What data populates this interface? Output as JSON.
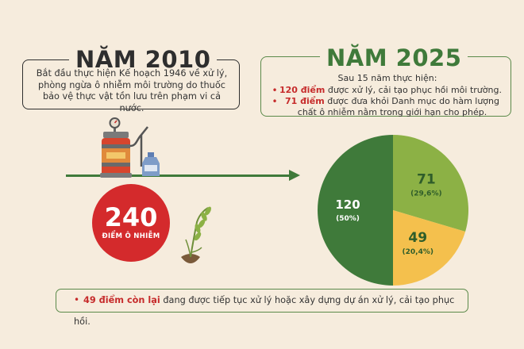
{
  "left": {
    "title": "NĂM 2010",
    "desc": "Bắt đầu thực hiện Kế hoạch 1946 về xử lý, phòng ngừa ô nhiễm môi trường do thuốc bảo vệ thực vật tồn lưu trên phạm vi cả nước.",
    "count": "240",
    "count_label": "ĐIỂM Ô NHIỄM"
  },
  "right": {
    "title": "NĂM 2025",
    "lead": "Sau 15 năm thực hiện:",
    "bullets": [
      {
        "highlight": "120 điểm",
        "text": " được xử lý, cải tạo phục hồi môi trường."
      },
      {
        "highlight": "71 điểm",
        "text": " được đưa khỏi Danh mục do hàm lượng chất ô nhiễm nằm trong giới hạn cho phép."
      }
    ]
  },
  "bottom": {
    "highlight": "49 điểm còn lại",
    "text": " đang được tiếp tục xử lý hoặc xây dựng dự án xử lý, cải tạo phục hồi."
  },
  "colors": {
    "dark_green": "#3f7a3a",
    "light_green": "#8cb145",
    "yellow": "#f4c04d",
    "red": "#d42a2c"
  },
  "icons": [
    "sprayer-icon",
    "bottle-icon",
    "plant-icon"
  ],
  "chart_data": {
    "type": "pie",
    "slices": [
      {
        "value": 120,
        "label": "120",
        "percent_label": "(50%)",
        "color": "#3f7a3a"
      },
      {
        "value": 71,
        "label": "71",
        "percent_label": "(29,6%)",
        "color": "#8cb145"
      },
      {
        "value": 49,
        "label": "49",
        "percent_label": "(20,4%)",
        "color": "#f4c04d"
      }
    ]
  }
}
